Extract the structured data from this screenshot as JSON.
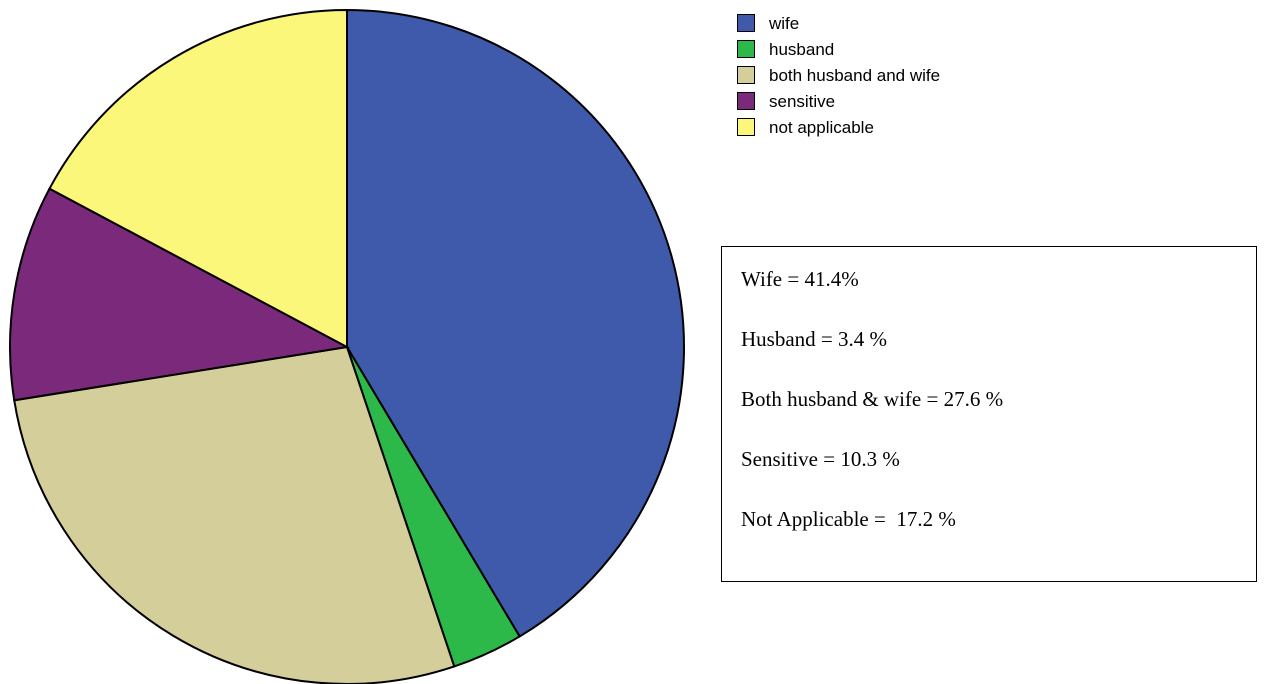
{
  "chart_data": {
    "type": "pie",
    "categories": [
      "wife",
      "husband",
      "both husband and wife",
      "sensitive",
      "not applicable"
    ],
    "values": [
      41.4,
      3.4,
      27.6,
      10.3,
      17.2
    ],
    "colors": [
      "#3f5aab",
      "#2db84a",
      "#d4ce9a",
      "#7b2a7b",
      "#fbf77a"
    ],
    "legend": "top-right",
    "annotations": [
      "Wife = 41.4%",
      "Husband = 3.4 %",
      "Both husband & wife = 27.6 %",
      "Sensitive = 10.3 %",
      "Not Applicable =  17.2 %"
    ]
  }
}
